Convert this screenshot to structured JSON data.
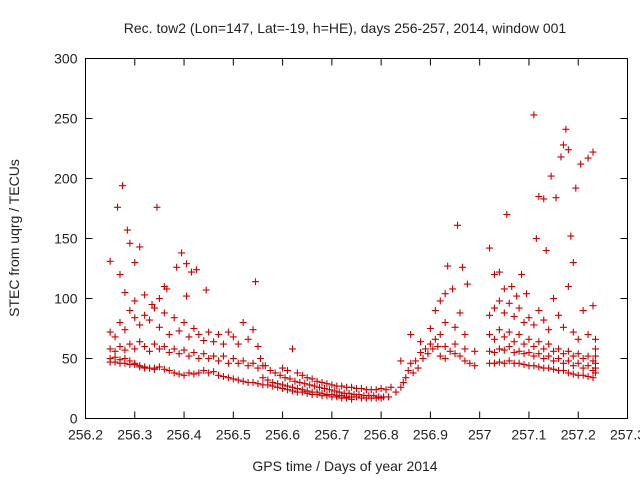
{
  "chart_data": {
    "type": "scatter",
    "title": "Rec. tow2 (Lon=147, Lat=-19, h=HE), days 256-257, 2014, window 001",
    "xlabel": "GPS time / Days of year 2014",
    "ylabel": "STEC from uqrg / TECUs",
    "xlim": [
      256.2,
      257.3
    ],
    "ylim": [
      0,
      300
    ],
    "xticks": [
      256.2,
      256.3,
      256.4,
      256.5,
      256.6,
      256.7,
      256.8,
      256.9,
      257,
      257.1,
      257.2,
      257.3
    ],
    "xtick_labels": [
      "256.2",
      "256.3",
      "256.4",
      "256.5",
      "256.6",
      "256.7",
      "256.8",
      "256.9",
      "257",
      "257.1",
      "257.2",
      "257.3"
    ],
    "yticks": [
      0,
      50,
      100,
      150,
      200,
      250,
      300
    ],
    "ytick_labels": [
      "0",
      "50",
      "100",
      "150",
      "200",
      "250",
      "300"
    ],
    "grid": false,
    "legend": "none",
    "marker": "+",
    "color": "#cc0000",
    "points": [
      [
        256.25,
        131
      ],
      [
        256.265,
        176
      ],
      [
        256.275,
        194
      ],
      [
        256.285,
        157
      ],
      [
        256.29,
        146
      ],
      [
        256.3,
        130
      ],
      [
        256.31,
        143
      ],
      [
        256.345,
        176
      ],
      [
        256.36,
        110
      ],
      [
        256.385,
        126
      ],
      [
        256.395,
        138
      ],
      [
        256.405,
        129
      ],
      [
        256.415,
        122
      ],
      [
        256.425,
        124
      ],
      [
        256.445,
        107
      ],
      [
        256.405,
        102
      ],
      [
        256.545,
        114
      ],
      [
        256.27,
        120
      ],
      [
        256.28,
        105
      ],
      [
        256.3,
        98
      ],
      [
        256.32,
        103
      ],
      [
        256.335,
        95
      ],
      [
        256.35,
        100
      ],
      [
        256.365,
        108
      ],
      [
        256.25,
        72
      ],
      [
        256.26,
        68
      ],
      [
        256.27,
        80
      ],
      [
        256.28,
        74
      ],
      [
        256.29,
        90
      ],
      [
        256.3,
        84
      ],
      [
        256.31,
        78
      ],
      [
        256.32,
        86
      ],
      [
        256.33,
        82
      ],
      [
        256.34,
        92
      ],
      [
        256.35,
        76
      ],
      [
        256.36,
        88
      ],
      [
        256.37,
        70
      ],
      [
        256.38,
        84
      ],
      [
        256.39,
        73
      ],
      [
        256.4,
        80
      ],
      [
        256.41,
        68
      ],
      [
        256.42,
        75
      ],
      [
        256.43,
        70
      ],
      [
        256.44,
        65
      ],
      [
        256.45,
        72
      ],
      [
        256.46,
        64
      ],
      [
        256.47,
        70
      ],
      [
        256.48,
        62
      ],
      [
        256.49,
        72
      ],
      [
        256.5,
        68
      ],
      [
        256.51,
        62
      ],
      [
        256.52,
        80
      ],
      [
        256.53,
        66
      ],
      [
        256.54,
        74
      ],
      [
        256.55,
        60
      ],
      [
        256.25,
        58
      ],
      [
        256.26,
        56
      ],
      [
        256.27,
        60
      ],
      [
        256.28,
        57
      ],
      [
        256.29,
        62
      ],
      [
        256.3,
        58
      ],
      [
        256.31,
        64
      ],
      [
        256.32,
        60
      ],
      [
        256.33,
        56
      ],
      [
        256.34,
        62
      ],
      [
        256.35,
        58
      ],
      [
        256.36,
        60
      ],
      [
        256.37,
        55
      ],
      [
        256.38,
        58
      ],
      [
        256.39,
        54
      ],
      [
        256.4,
        57
      ],
      [
        256.41,
        52
      ],
      [
        256.42,
        55
      ],
      [
        256.43,
        50
      ],
      [
        256.44,
        54
      ],
      [
        256.45,
        50
      ],
      [
        256.46,
        52
      ],
      [
        256.47,
        48
      ],
      [
        256.48,
        52
      ],
      [
        256.49,
        46
      ],
      [
        256.5,
        50
      ],
      [
        256.51,
        46
      ],
      [
        256.52,
        48
      ],
      [
        256.53,
        44
      ],
      [
        256.54,
        46
      ],
      [
        256.55,
        42
      ],
      [
        256.56,
        44
      ],
      [
        256.25,
        50
      ],
      [
        256.26,
        51
      ],
      [
        256.27,
        49
      ],
      [
        256.28,
        50
      ],
      [
        256.29,
        48
      ],
      [
        256.3,
        46
      ],
      [
        256.31,
        44
      ],
      [
        256.32,
        43
      ],
      [
        256.33,
        42
      ],
      [
        256.34,
        42
      ],
      [
        256.35,
        43
      ],
      [
        256.36,
        41
      ],
      [
        256.37,
        40
      ],
      [
        256.38,
        38
      ],
      [
        256.39,
        37
      ],
      [
        256.4,
        36
      ],
      [
        256.41,
        38
      ],
      [
        256.42,
        37
      ],
      [
        256.43,
        38
      ],
      [
        256.44,
        40
      ],
      [
        256.45,
        38
      ],
      [
        256.46,
        39
      ],
      [
        256.47,
        36
      ],
      [
        256.48,
        35
      ],
      [
        256.49,
        34
      ],
      [
        256.5,
        33
      ],
      [
        256.51,
        32
      ],
      [
        256.52,
        31
      ],
      [
        256.53,
        30
      ],
      [
        256.54,
        30
      ],
      [
        256.55,
        29
      ],
      [
        256.56,
        28
      ],
      [
        256.25,
        47
      ],
      [
        256.26,
        47
      ],
      [
        256.27,
        46
      ],
      [
        256.28,
        46
      ],
      [
        256.29,
        45
      ],
      [
        256.3,
        45
      ],
      [
        256.31,
        43
      ],
      [
        256.32,
        42
      ],
      [
        256.33,
        42
      ],
      [
        256.34,
        41
      ],
      [
        256.555,
        50
      ],
      [
        256.565,
        44
      ],
      [
        256.575,
        40
      ],
      [
        256.585,
        38
      ],
      [
        256.595,
        36
      ],
      [
        256.605,
        34
      ],
      [
        256.615,
        33
      ],
      [
        256.625,
        31
      ],
      [
        256.635,
        30
      ],
      [
        256.645,
        29
      ],
      [
        256.655,
        28
      ],
      [
        256.665,
        27
      ],
      [
        256.675,
        26
      ],
      [
        256.685,
        25
      ],
      [
        256.695,
        24
      ],
      [
        256.705,
        23
      ],
      [
        256.715,
        22
      ],
      [
        256.725,
        21
      ],
      [
        256.735,
        21
      ],
      [
        256.745,
        20
      ],
      [
        256.755,
        20
      ],
      [
        256.765,
        19
      ],
      [
        256.775,
        19
      ],
      [
        256.785,
        19
      ],
      [
        256.795,
        18
      ],
      [
        256.805,
        18
      ],
      [
        256.815,
        18
      ],
      [
        256.56,
        34
      ],
      [
        256.57,
        32
      ],
      [
        256.58,
        30
      ],
      [
        256.59,
        29
      ],
      [
        256.6,
        28
      ],
      [
        256.61,
        27
      ],
      [
        256.62,
        26
      ],
      [
        256.63,
        25
      ],
      [
        256.64,
        24
      ],
      [
        256.65,
        23
      ],
      [
        256.66,
        22
      ],
      [
        256.67,
        22
      ],
      [
        256.68,
        21
      ],
      [
        256.69,
        20
      ],
      [
        256.7,
        20
      ],
      [
        256.71,
        19
      ],
      [
        256.72,
        19
      ],
      [
        256.73,
        18
      ],
      [
        256.74,
        18
      ],
      [
        256.75,
        18
      ],
      [
        256.76,
        17
      ],
      [
        256.77,
        17
      ],
      [
        256.78,
        17
      ],
      [
        256.79,
        17
      ],
      [
        256.8,
        17
      ],
      [
        256.57,
        28
      ],
      [
        256.58,
        27
      ],
      [
        256.59,
        26
      ],
      [
        256.6,
        25
      ],
      [
        256.61,
        24
      ],
      [
        256.62,
        23
      ],
      [
        256.63,
        22
      ],
      [
        256.64,
        22
      ],
      [
        256.65,
        21
      ],
      [
        256.66,
        20
      ],
      [
        256.67,
        20
      ],
      [
        256.68,
        19
      ],
      [
        256.69,
        19
      ],
      [
        256.7,
        18
      ],
      [
        256.71,
        18
      ],
      [
        256.72,
        17
      ],
      [
        256.73,
        17
      ],
      [
        256.74,
        16
      ],
      [
        256.6,
        42
      ],
      [
        256.61,
        40
      ],
      [
        256.62,
        58
      ],
      [
        256.63,
        38
      ],
      [
        256.64,
        36
      ],
      [
        256.65,
        34
      ],
      [
        256.66,
        33
      ],
      [
        256.67,
        31
      ],
      [
        256.68,
        30
      ],
      [
        256.69,
        29
      ],
      [
        256.7,
        28
      ],
      [
        256.71,
        27
      ],
      [
        256.72,
        27
      ],
      [
        256.73,
        26
      ],
      [
        256.74,
        26
      ],
      [
        256.75,
        25
      ],
      [
        256.76,
        25
      ],
      [
        256.77,
        24
      ],
      [
        256.78,
        24
      ],
      [
        256.79,
        24
      ],
      [
        256.8,
        25
      ],
      [
        256.81,
        24
      ],
      [
        256.82,
        26
      ],
      [
        256.83,
        22
      ],
      [
        256.84,
        26
      ],
      [
        256.845,
        30
      ],
      [
        256.85,
        34
      ],
      [
        256.855,
        40
      ],
      [
        256.86,
        46
      ],
      [
        256.865,
        38
      ],
      [
        256.87,
        48
      ],
      [
        256.875,
        42
      ],
      [
        256.88,
        55
      ],
      [
        256.885,
        50
      ],
      [
        256.89,
        58
      ],
      [
        256.895,
        54
      ],
      [
        256.9,
        62
      ],
      [
        256.905,
        58
      ],
      [
        256.91,
        66
      ],
      [
        256.915,
        60
      ],
      [
        256.92,
        70
      ],
      [
        256.84,
        48
      ],
      [
        256.86,
        70
      ],
      [
        256.88,
        64
      ],
      [
        256.9,
        75
      ],
      [
        256.91,
        90
      ],
      [
        256.92,
        98
      ],
      [
        256.93,
        104
      ],
      [
        256.935,
        127
      ],
      [
        256.945,
        108
      ],
      [
        256.955,
        161
      ],
      [
        256.965,
        126
      ],
      [
        256.975,
        112
      ],
      [
        256.93,
        80
      ],
      [
        256.95,
        76
      ],
      [
        256.96,
        88
      ],
      [
        256.97,
        70
      ],
      [
        256.92,
        52
      ],
      [
        256.93,
        50
      ],
      [
        256.94,
        56
      ],
      [
        256.95,
        54
      ],
      [
        256.96,
        52
      ],
      [
        256.97,
        48
      ],
      [
        256.98,
        46
      ],
      [
        256.99,
        44
      ],
      [
        256.93,
        60
      ],
      [
        256.95,
        62
      ],
      [
        256.97,
        58
      ],
      [
        256.99,
        56
      ],
      [
        257.02,
        142
      ],
      [
        257.03,
        120
      ],
      [
        257.04,
        122
      ],
      [
        257.05,
        108
      ],
      [
        257.055,
        170
      ],
      [
        257.065,
        110
      ],
      [
        257.075,
        102
      ],
      [
        257.085,
        120
      ],
      [
        257.095,
        104
      ],
      [
        257.11,
        253
      ],
      [
        257.115,
        150
      ],
      [
        257.12,
        185
      ],
      [
        257.13,
        183
      ],
      [
        257.135,
        140
      ],
      [
        257.145,
        202
      ],
      [
        257.155,
        184
      ],
      [
        257.165,
        218
      ],
      [
        257.17,
        228
      ],
      [
        257.175,
        241
      ],
      [
        257.18,
        224
      ],
      [
        257.185,
        152
      ],
      [
        257.19,
        130
      ],
      [
        257.195,
        192
      ],
      [
        257.205,
        212
      ],
      [
        257.22,
        217
      ],
      [
        257.23,
        222
      ],
      [
        257.02,
        86
      ],
      [
        257.03,
        92
      ],
      [
        257.04,
        98
      ],
      [
        257.05,
        88
      ],
      [
        257.06,
        96
      ],
      [
        257.07,
        85
      ],
      [
        257.08,
        92
      ],
      [
        257.09,
        80
      ],
      [
        257.1,
        84
      ],
      [
        257.11,
        78
      ],
      [
        257.12,
        90
      ],
      [
        257.13,
        82
      ],
      [
        257.14,
        74
      ],
      [
        257.15,
        100
      ],
      [
        257.16,
        86
      ],
      [
        257.17,
        76
      ],
      [
        257.18,
        110
      ],
      [
        257.19,
        72
      ],
      [
        257.2,
        66
      ],
      [
        257.21,
        90
      ],
      [
        257.22,
        70
      ],
      [
        257.23,
        94
      ],
      [
        257.02,
        70
      ],
      [
        257.03,
        66
      ],
      [
        257.04,
        74
      ],
      [
        257.05,
        68
      ],
      [
        257.06,
        72
      ],
      [
        257.07,
        64
      ],
      [
        257.08,
        70
      ],
      [
        257.09,
        62
      ],
      [
        257.1,
        66
      ],
      [
        257.11,
        60
      ],
      [
        257.12,
        64
      ],
      [
        257.13,
        58
      ],
      [
        257.14,
        62
      ],
      [
        257.15,
        56
      ],
      [
        257.16,
        58
      ],
      [
        257.17,
        54
      ],
      [
        257.18,
        56
      ],
      [
        257.19,
        52
      ],
      [
        257.2,
        54
      ],
      [
        257.21,
        50
      ],
      [
        257.22,
        52
      ],
      [
        257.23,
        48
      ],
      [
        257.02,
        56
      ],
      [
        257.03,
        55
      ],
      [
        257.04,
        58
      ],
      [
        257.05,
        57
      ],
      [
        257.06,
        60
      ],
      [
        257.07,
        55
      ],
      [
        257.08,
        56
      ],
      [
        257.09,
        54
      ],
      [
        257.1,
        55
      ],
      [
        257.11,
        52
      ],
      [
        257.12,
        54
      ],
      [
        257.13,
        50
      ],
      [
        257.14,
        52
      ],
      [
        257.15,
        48
      ],
      [
        257.16,
        50
      ],
      [
        257.17,
        46
      ],
      [
        257.18,
        48
      ],
      [
        257.19,
        44
      ],
      [
        257.2,
        46
      ],
      [
        257.21,
        42
      ],
      [
        257.22,
        44
      ],
      [
        257.23,
        40
      ],
      [
        257.02,
        46
      ],
      [
        257.03,
        46
      ],
      [
        257.04,
        47
      ],
      [
        257.05,
        46
      ],
      [
        257.06,
        48
      ],
      [
        257.07,
        46
      ],
      [
        257.08,
        46
      ],
      [
        257.09,
        45
      ],
      [
        257.1,
        44
      ],
      [
        257.11,
        44
      ],
      [
        257.12,
        43
      ],
      [
        257.13,
        42
      ],
      [
        257.14,
        42
      ],
      [
        257.15,
        41
      ],
      [
        257.16,
        40
      ],
      [
        257.17,
        40
      ],
      [
        257.18,
        38
      ],
      [
        257.19,
        37
      ],
      [
        257.2,
        36
      ],
      [
        257.21,
        36
      ],
      [
        257.22,
        35
      ],
      [
        257.23,
        34
      ],
      [
        257.235,
        38
      ],
      [
        257.235,
        42
      ],
      [
        257.235,
        46
      ],
      [
        257.235,
        52
      ],
      [
        257.235,
        58
      ],
      [
        257.235,
        66
      ]
    ]
  }
}
